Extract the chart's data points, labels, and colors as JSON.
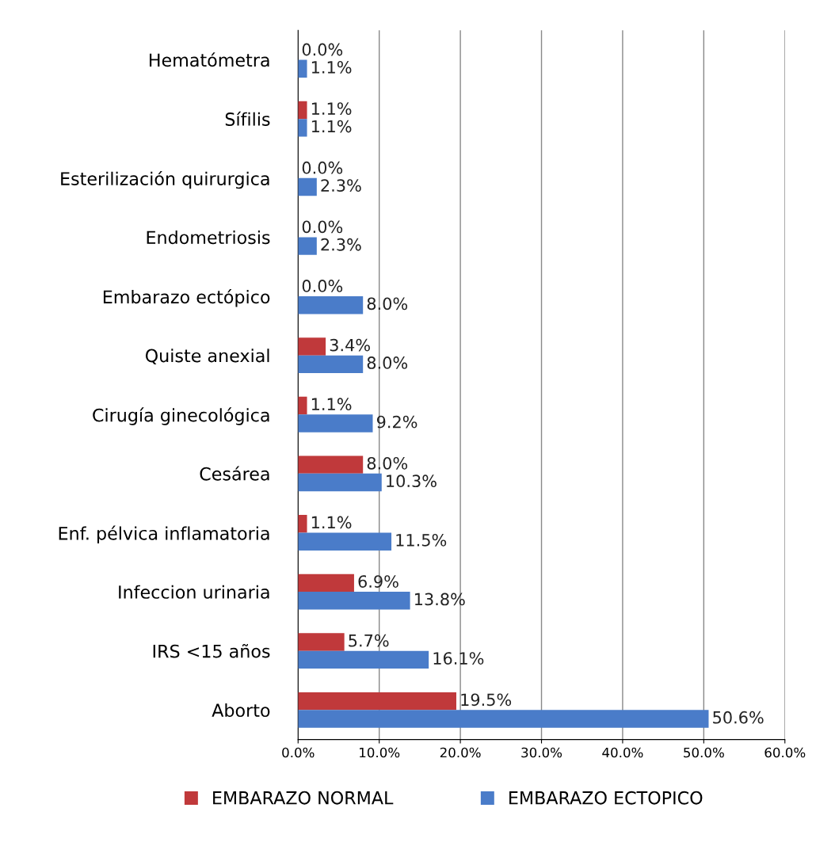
{
  "chart_data": {
    "type": "bar",
    "orientation": "horizontal",
    "categories": [
      "Hematómetra",
      "Sífilis",
      "Esterilización quirurgica",
      "Endometriosis",
      "Embarazo ectópico",
      "Quiste anexial",
      "Cirugía ginecológica",
      "Cesárea",
      "Enf. pélvica inflamatoria",
      "Infeccion urinaria",
      "IRS <15 años",
      "Aborto"
    ],
    "series": [
      {
        "name": "EMBARAZO NORMAL",
        "color": "#c0393b",
        "values": [
          0.0,
          1.1,
          0.0,
          0.0,
          0.0,
          3.4,
          1.1,
          8.0,
          1.1,
          6.9,
          5.7,
          19.5
        ],
        "value_labels": [
          "0.0%",
          "1.1%",
          "0.0%",
          "0.0%",
          "0.0%",
          "3.4%",
          "1.1%",
          "8.0%",
          "1.1%",
          "6.9%",
          "5.7%",
          "19.5%"
        ]
      },
      {
        "name": "EMBARAZO ECTOPICO",
        "color": "#4a7cc9",
        "values": [
          1.1,
          1.1,
          2.3,
          2.3,
          8.0,
          8.0,
          9.2,
          10.3,
          11.5,
          13.8,
          16.1,
          50.6
        ],
        "value_labels": [
          "1.1%",
          "1.1%",
          "2.3%",
          "2.3%",
          "8.0%",
          "8.0%",
          "9.2%",
          "10.3%",
          "11.5%",
          "13.8%",
          "16.1%",
          "50.6%"
        ]
      }
    ],
    "xlim": [
      0,
      60
    ],
    "xticks": [
      {
        "value": 0,
        "label": "0.0%"
      },
      {
        "value": 10,
        "label": "10.0%"
      },
      {
        "value": 20,
        "label": "20.0%"
      },
      {
        "value": 30,
        "label": "30.0%"
      },
      {
        "value": 40,
        "label": "40.0%"
      },
      {
        "value": 50,
        "label": "50.0%"
      },
      {
        "value": 60,
        "label": "60.0%"
      }
    ],
    "grid": "x",
    "legend": "bottom"
  }
}
